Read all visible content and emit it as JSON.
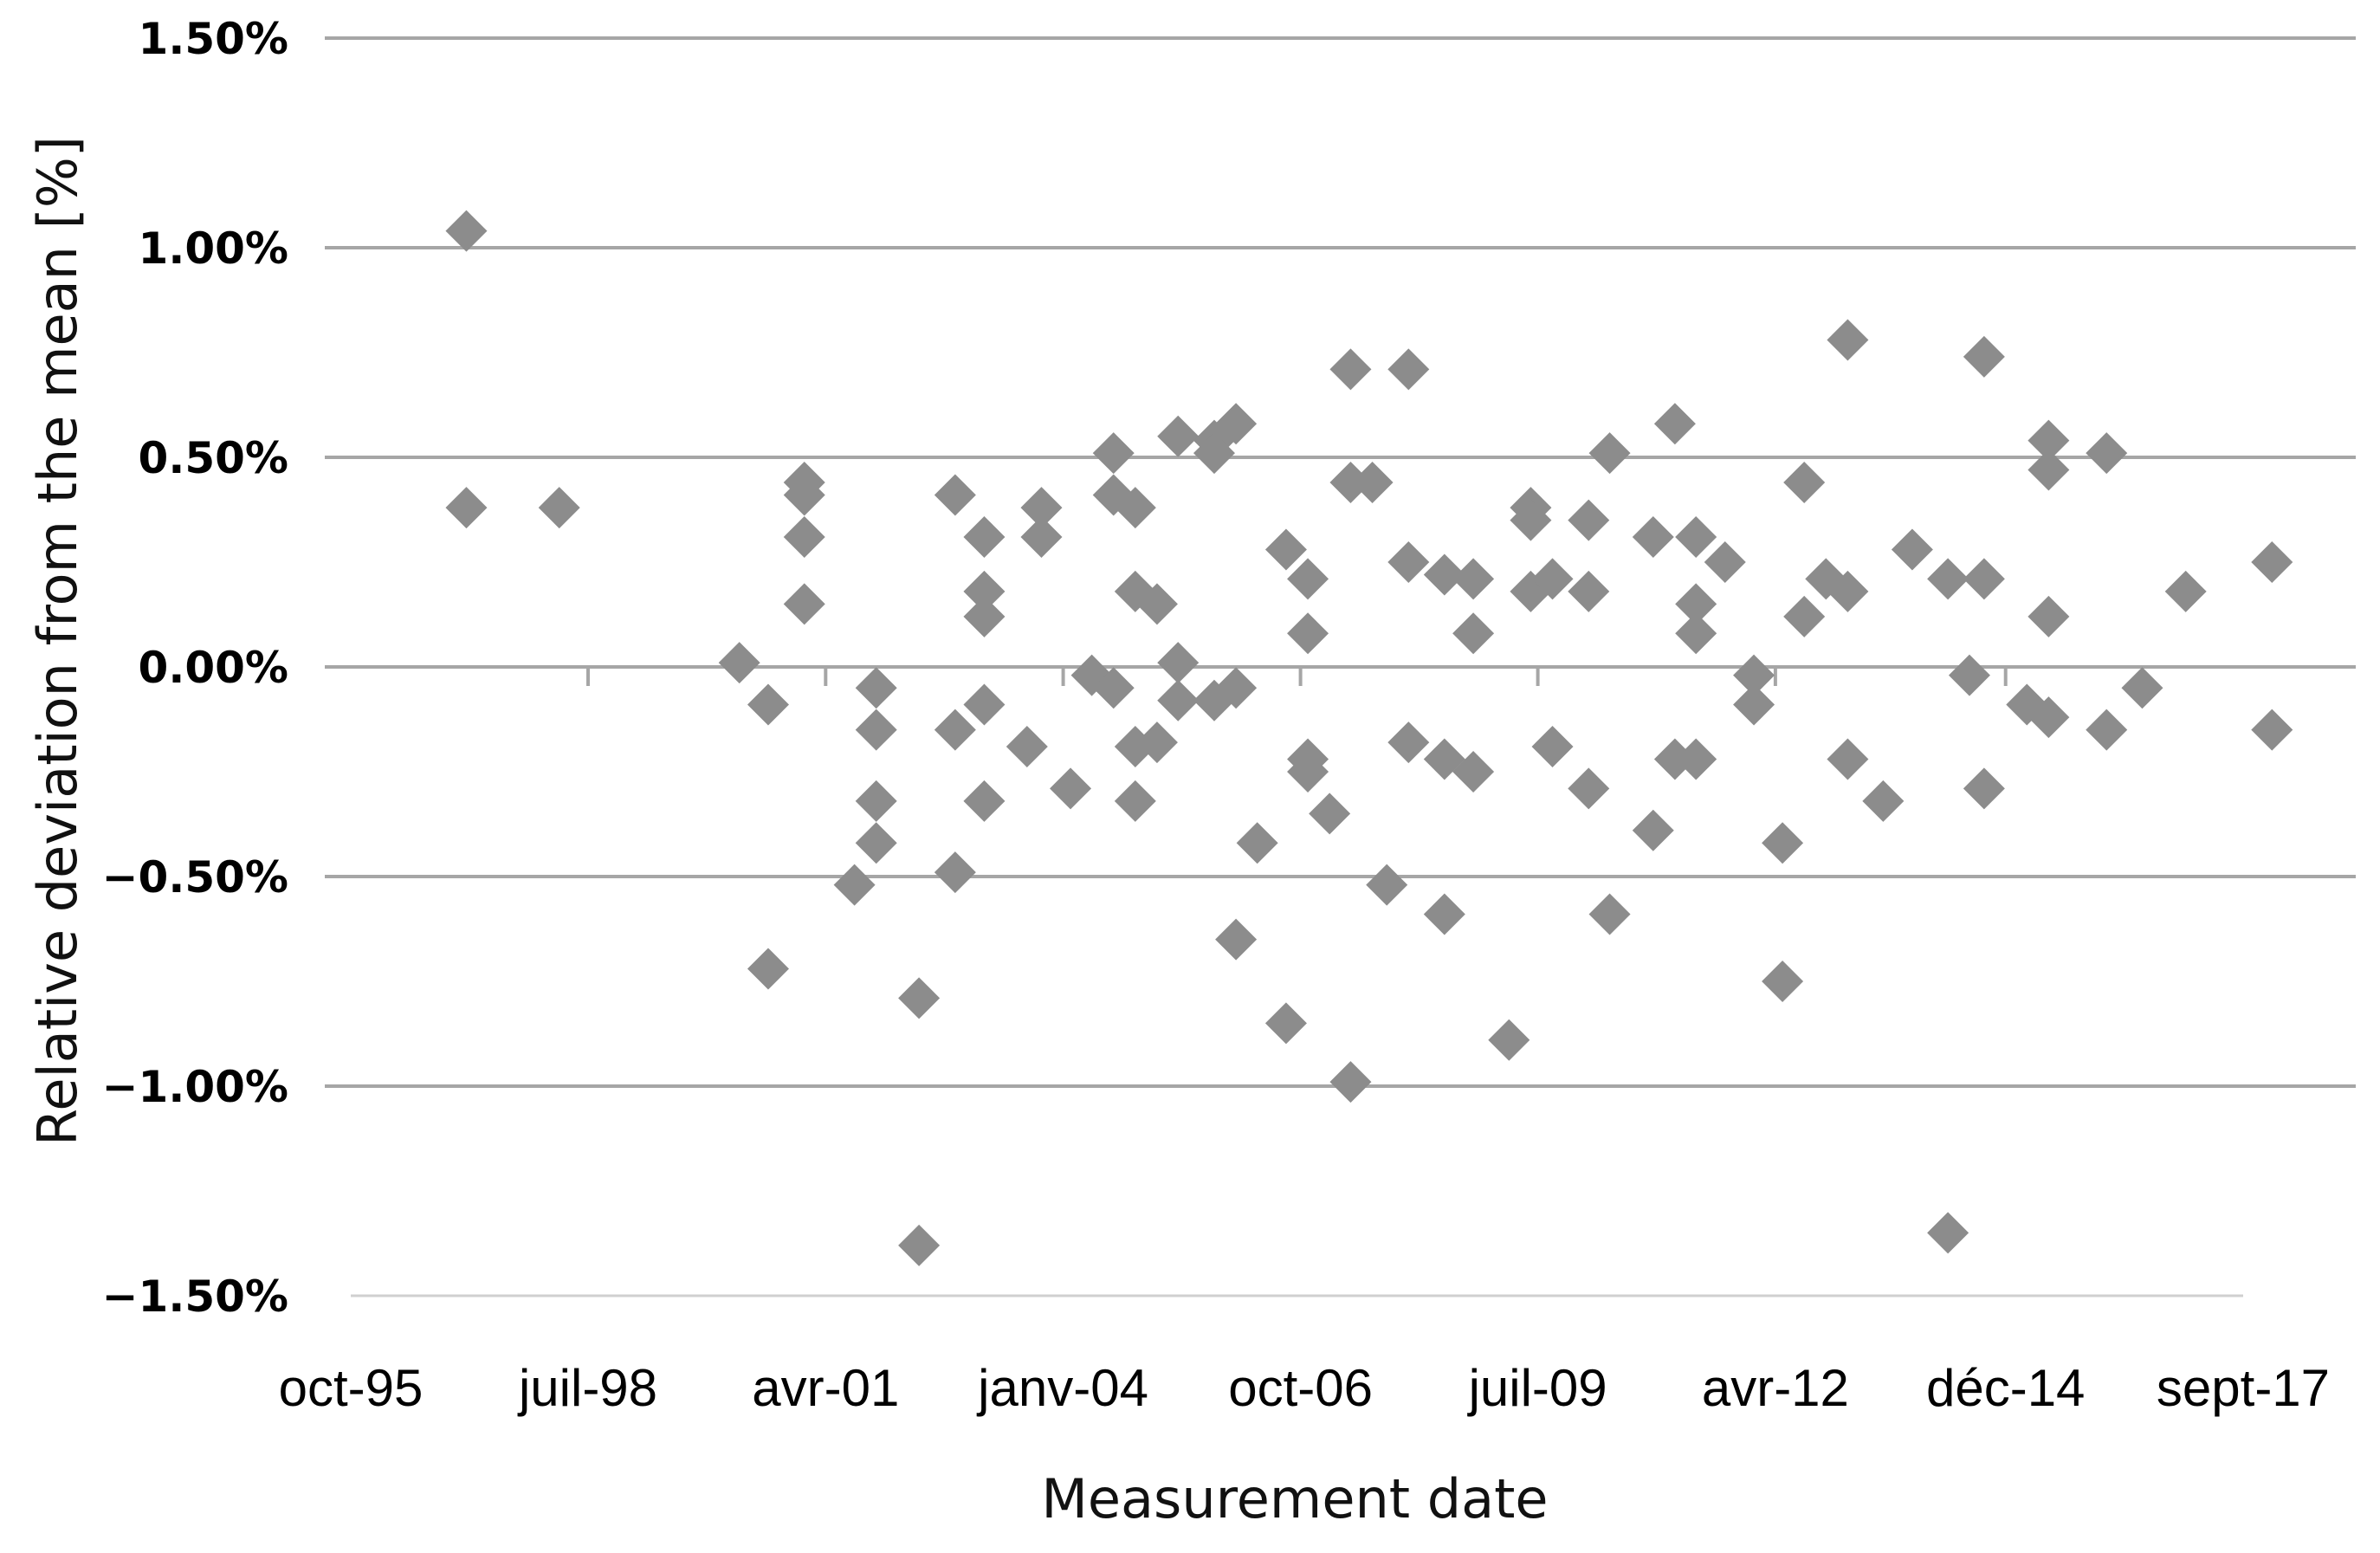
{
  "chart_data": {
    "type": "scatter",
    "xlabel": "Measurement date",
    "ylabel": "Relative deviation from the mean [%]",
    "x_scale": "date",
    "xlim": [
      "1995-10-01",
      "2017-09-01"
    ],
    "ylim": [
      -1.5,
      1.5
    ],
    "y_ticks": [
      1.5,
      1.0,
      0.5,
      0.0,
      -0.5,
      -1.0,
      -1.5
    ],
    "y_tick_labels": [
      "1.50%",
      "1.00%",
      "0.50%",
      "0.00%",
      "−0.50%",
      "−1.00%",
      "−1.50%"
    ],
    "x_tick_dates": [
      "1995-10-01",
      "1998-07-01",
      "2001-04-01",
      "2004-01-01",
      "2006-10-01",
      "2009-07-01",
      "2012-04-01",
      "2014-12-01",
      "2017-09-01"
    ],
    "x_tick_labels": [
      "oct-95",
      "juil-98",
      "avr-01",
      "janv-04",
      "oct-06",
      "juil-09",
      "avr-12",
      "déc-14",
      "sept-17"
    ],
    "grid": "horizontal",
    "legend": "none",
    "marker": "diamond",
    "marker_color": "#8c8c8c",
    "grid_color": "#a6a6a6",
    "series": [
      {
        "points": [
          [
            "1997-02-01",
            1.04
          ],
          [
            "1997-02-01",
            0.38
          ],
          [
            "1998-03-01",
            0.38
          ],
          [
            "2000-04-01",
            0.01
          ],
          [
            "2000-08-01",
            -0.09
          ],
          [
            "2000-08-01",
            -0.72
          ],
          [
            "2001-01-01",
            0.44
          ],
          [
            "2001-01-01",
            0.41
          ],
          [
            "2001-01-01",
            0.31
          ],
          [
            "2001-01-01",
            0.15
          ],
          [
            "2001-08-01",
            -0.52
          ],
          [
            "2001-11-01",
            -0.05
          ],
          [
            "2001-11-01",
            -0.15
          ],
          [
            "2001-11-01",
            -0.32
          ],
          [
            "2001-11-01",
            -0.42
          ],
          [
            "2002-05-01",
            -0.79
          ],
          [
            "2002-05-01",
            -1.38
          ],
          [
            "2002-10-01",
            0.41
          ],
          [
            "2002-10-01",
            -0.15
          ],
          [
            "2002-10-01",
            -0.49
          ],
          [
            "2003-02-01",
            0.31
          ],
          [
            "2003-02-01",
            0.18
          ],
          [
            "2003-02-01",
            0.12
          ],
          [
            "2003-02-01",
            -0.09
          ],
          [
            "2003-02-01",
            -0.32
          ],
          [
            "2003-08-01",
            -0.19
          ],
          [
            "2003-10-01",
            0.38
          ],
          [
            "2003-10-01",
            0.31
          ],
          [
            "2004-02-01",
            -0.29
          ],
          [
            "2004-05-01",
            -0.02
          ],
          [
            "2004-08-01",
            0.51
          ],
          [
            "2004-08-01",
            0.41
          ],
          [
            "2004-08-01",
            -0.05
          ],
          [
            "2004-11-01",
            0.38
          ],
          [
            "2004-11-01",
            0.18
          ],
          [
            "2004-11-01",
            -0.19
          ],
          [
            "2004-11-01",
            -0.32
          ],
          [
            "2005-02-01",
            0.15
          ],
          [
            "2005-02-01",
            -0.18
          ],
          [
            "2005-05-01",
            0.55
          ],
          [
            "2005-05-01",
            0.01
          ],
          [
            "2005-05-01",
            -0.08
          ],
          [
            "2005-10-01",
            0.54
          ],
          [
            "2005-10-01",
            0.51
          ],
          [
            "2005-10-01",
            -0.08
          ],
          [
            "2006-01-01",
            0.58
          ],
          [
            "2006-01-01",
            -0.05
          ],
          [
            "2006-01-01",
            -0.65
          ],
          [
            "2006-04-01",
            -0.42
          ],
          [
            "2006-08-01",
            0.28
          ],
          [
            "2006-08-01",
            -0.85
          ],
          [
            "2006-11-01",
            0.21
          ],
          [
            "2006-11-01",
            0.08
          ],
          [
            "2006-11-01",
            -0.22
          ],
          [
            "2006-11-01",
            -0.25
          ],
          [
            "2007-02-01",
            -0.35
          ],
          [
            "2007-05-01",
            0.71
          ],
          [
            "2007-05-01",
            0.44
          ],
          [
            "2007-05-01",
            -0.99
          ],
          [
            "2007-08-01",
            0.44
          ],
          [
            "2007-10-01",
            -0.52
          ],
          [
            "2008-01-01",
            0.71
          ],
          [
            "2008-01-01",
            0.25
          ],
          [
            "2008-01-01",
            -0.18
          ],
          [
            "2008-06-01",
            0.22
          ],
          [
            "2008-06-01",
            -0.22
          ],
          [
            "2008-06-01",
            -0.59
          ],
          [
            "2008-10-01",
            0.21
          ],
          [
            "2008-10-01",
            0.08
          ],
          [
            "2008-10-01",
            -0.25
          ],
          [
            "2009-03-01",
            -0.89
          ],
          [
            "2009-06-01",
            0.38
          ],
          [
            "2009-06-01",
            0.35
          ],
          [
            "2009-06-01",
            0.18
          ],
          [
            "2009-09-01",
            0.21
          ],
          [
            "2009-09-01",
            -0.19
          ],
          [
            "2010-02-01",
            0.35
          ],
          [
            "2010-02-01",
            0.18
          ],
          [
            "2010-02-01",
            -0.29
          ],
          [
            "2010-05-01",
            0.51
          ],
          [
            "2010-05-01",
            -0.59
          ],
          [
            "2010-11-01",
            0.31
          ],
          [
            "2010-11-01",
            -0.39
          ],
          [
            "2011-02-01",
            0.58
          ],
          [
            "2011-02-01",
            -0.22
          ],
          [
            "2011-05-01",
            0.31
          ],
          [
            "2011-05-01",
            0.15
          ],
          [
            "2011-05-01",
            0.08
          ],
          [
            "2011-05-01",
            -0.22
          ],
          [
            "2011-09-01",
            0.25
          ],
          [
            "2012-01-01",
            -0.02
          ],
          [
            "2012-01-01",
            -0.09
          ],
          [
            "2012-05-01",
            -0.42
          ],
          [
            "2012-05-01",
            -0.75
          ],
          [
            "2012-08-01",
            0.44
          ],
          [
            "2012-08-01",
            0.12
          ],
          [
            "2012-11-01",
            0.21
          ],
          [
            "2013-02-01",
            0.78
          ],
          [
            "2013-02-01",
            0.18
          ],
          [
            "2013-02-01",
            -0.22
          ],
          [
            "2013-07-01",
            -0.32
          ],
          [
            "2013-11-01",
            0.28
          ],
          [
            "2014-04-01",
            0.21
          ],
          [
            "2014-04-01",
            -1.35
          ],
          [
            "2014-07-01",
            -0.02
          ],
          [
            "2014-09-01",
            0.74
          ],
          [
            "2014-09-01",
            0.21
          ],
          [
            "2014-09-01",
            -0.29
          ],
          [
            "2015-03-01",
            -0.09
          ],
          [
            "2015-06-01",
            0.54
          ],
          [
            "2015-06-01",
            0.47
          ],
          [
            "2015-06-01",
            0.12
          ],
          [
            "2015-06-01",
            -0.12
          ],
          [
            "2016-02-01",
            0.51
          ],
          [
            "2016-02-01",
            -0.15
          ],
          [
            "2016-07-01",
            -0.05
          ],
          [
            "2017-01-01",
            0.18
          ],
          [
            "2018-01-01",
            0.25
          ],
          [
            "2018-01-01",
            -0.15
          ]
        ]
      }
    ]
  }
}
